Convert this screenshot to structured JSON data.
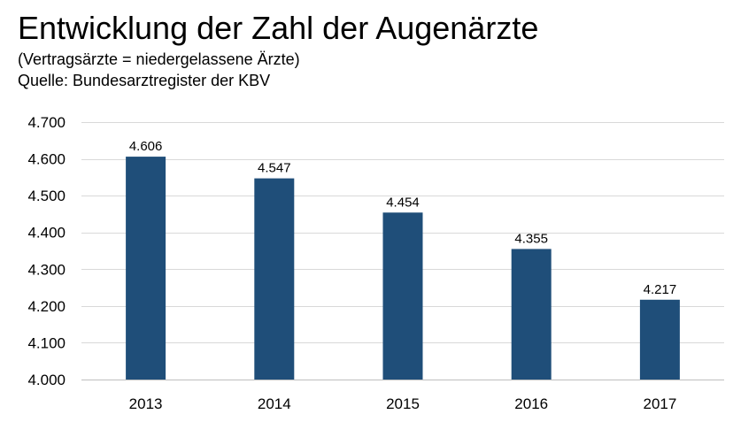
{
  "header": {
    "title": "Entwicklung der Zahl der Augenärzte",
    "subtitle": "(Vertragsärzte = niedergelassene Ärzte)",
    "source": "Quelle: Bundesarztregister der KBV"
  },
  "chart_data": {
    "type": "bar",
    "title": "Entwicklung der Zahl der Augenärzte",
    "subtitle": "(Vertragsärzte = niedergelassene Ärzte)",
    "xlabel": "",
    "ylabel": "",
    "categories": [
      "2013",
      "2014",
      "2015",
      "2016",
      "2017"
    ],
    "values": [
      4606,
      4547,
      4454,
      4355,
      4217
    ],
    "value_labels": [
      "4.606",
      "4.547",
      "4.454",
      "4.355",
      "4.217"
    ],
    "ylim": [
      4000,
      4700
    ],
    "yticks": [
      4000,
      4100,
      4200,
      4300,
      4400,
      4500,
      4600,
      4700
    ],
    "ytick_labels": [
      "4.000",
      "4.100",
      "4.200",
      "4.300",
      "4.400",
      "4.500",
      "4.600",
      "4.700"
    ],
    "grid": true,
    "legend": "none",
    "bar_color": "#1f4e79",
    "grid_color": "#d9d9d9"
  }
}
